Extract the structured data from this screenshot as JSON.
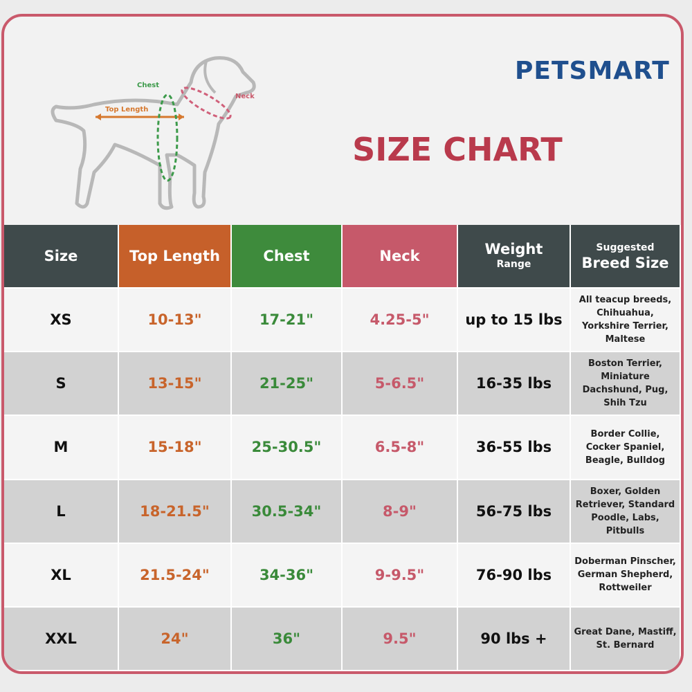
{
  "header": {
    "logo": "PETSMART",
    "title": "SIZE CHART"
  },
  "diagram": {
    "chest": "Chest",
    "top_length": "Top Length",
    "neck": "Neck"
  },
  "table": {
    "columns": [
      "Size",
      "Top Length",
      "Chest",
      "Neck",
      {
        "main": "Weight",
        "sub": "Range"
      },
      {
        "sub": "Suggested",
        "main": "Breed Size"
      }
    ],
    "rows": [
      [
        "XS",
        "10-13\"",
        "17-21\"",
        "4.25-5\"",
        "up to 15 lbs",
        [
          "All teacup breeds,",
          "Chihuahua,",
          "Yorkshire Terrier,",
          "Maltese"
        ]
      ],
      [
        "S",
        "13-15\"",
        "21-25\"",
        "5-6.5\"",
        "16-35 lbs",
        [
          "Boston Terrier,",
          "Miniature",
          "Dachshund, Pug,",
          "Shih Tzu"
        ]
      ],
      [
        "M",
        "15-18\"",
        "25-30.5\"",
        "6.5-8\"",
        "36-55 lbs",
        [
          "Border Collie,",
          "Cocker Spaniel,",
          "Beagle, Bulldog"
        ]
      ],
      [
        "L",
        "18-21.5\"",
        "30.5-34\"",
        "8-9\"",
        "56-75 lbs",
        [
          "Boxer, Golden",
          "Retriever, Standard",
          "Poodle, Labs,",
          "Pitbulls"
        ]
      ],
      [
        "XL",
        "21.5-24\"",
        "34-36\"",
        "9-9.5\"",
        "76-90 lbs",
        [
          "Doberman Pinscher,",
          "German Shepherd,",
          "Rottweiler"
        ]
      ],
      [
        "XXL",
        "24\"",
        "36\"",
        "9.5\"",
        "90 lbs +",
        [
          "Great Dane, Mastiff,",
          "St. Bernard"
        ]
      ]
    ]
  }
}
